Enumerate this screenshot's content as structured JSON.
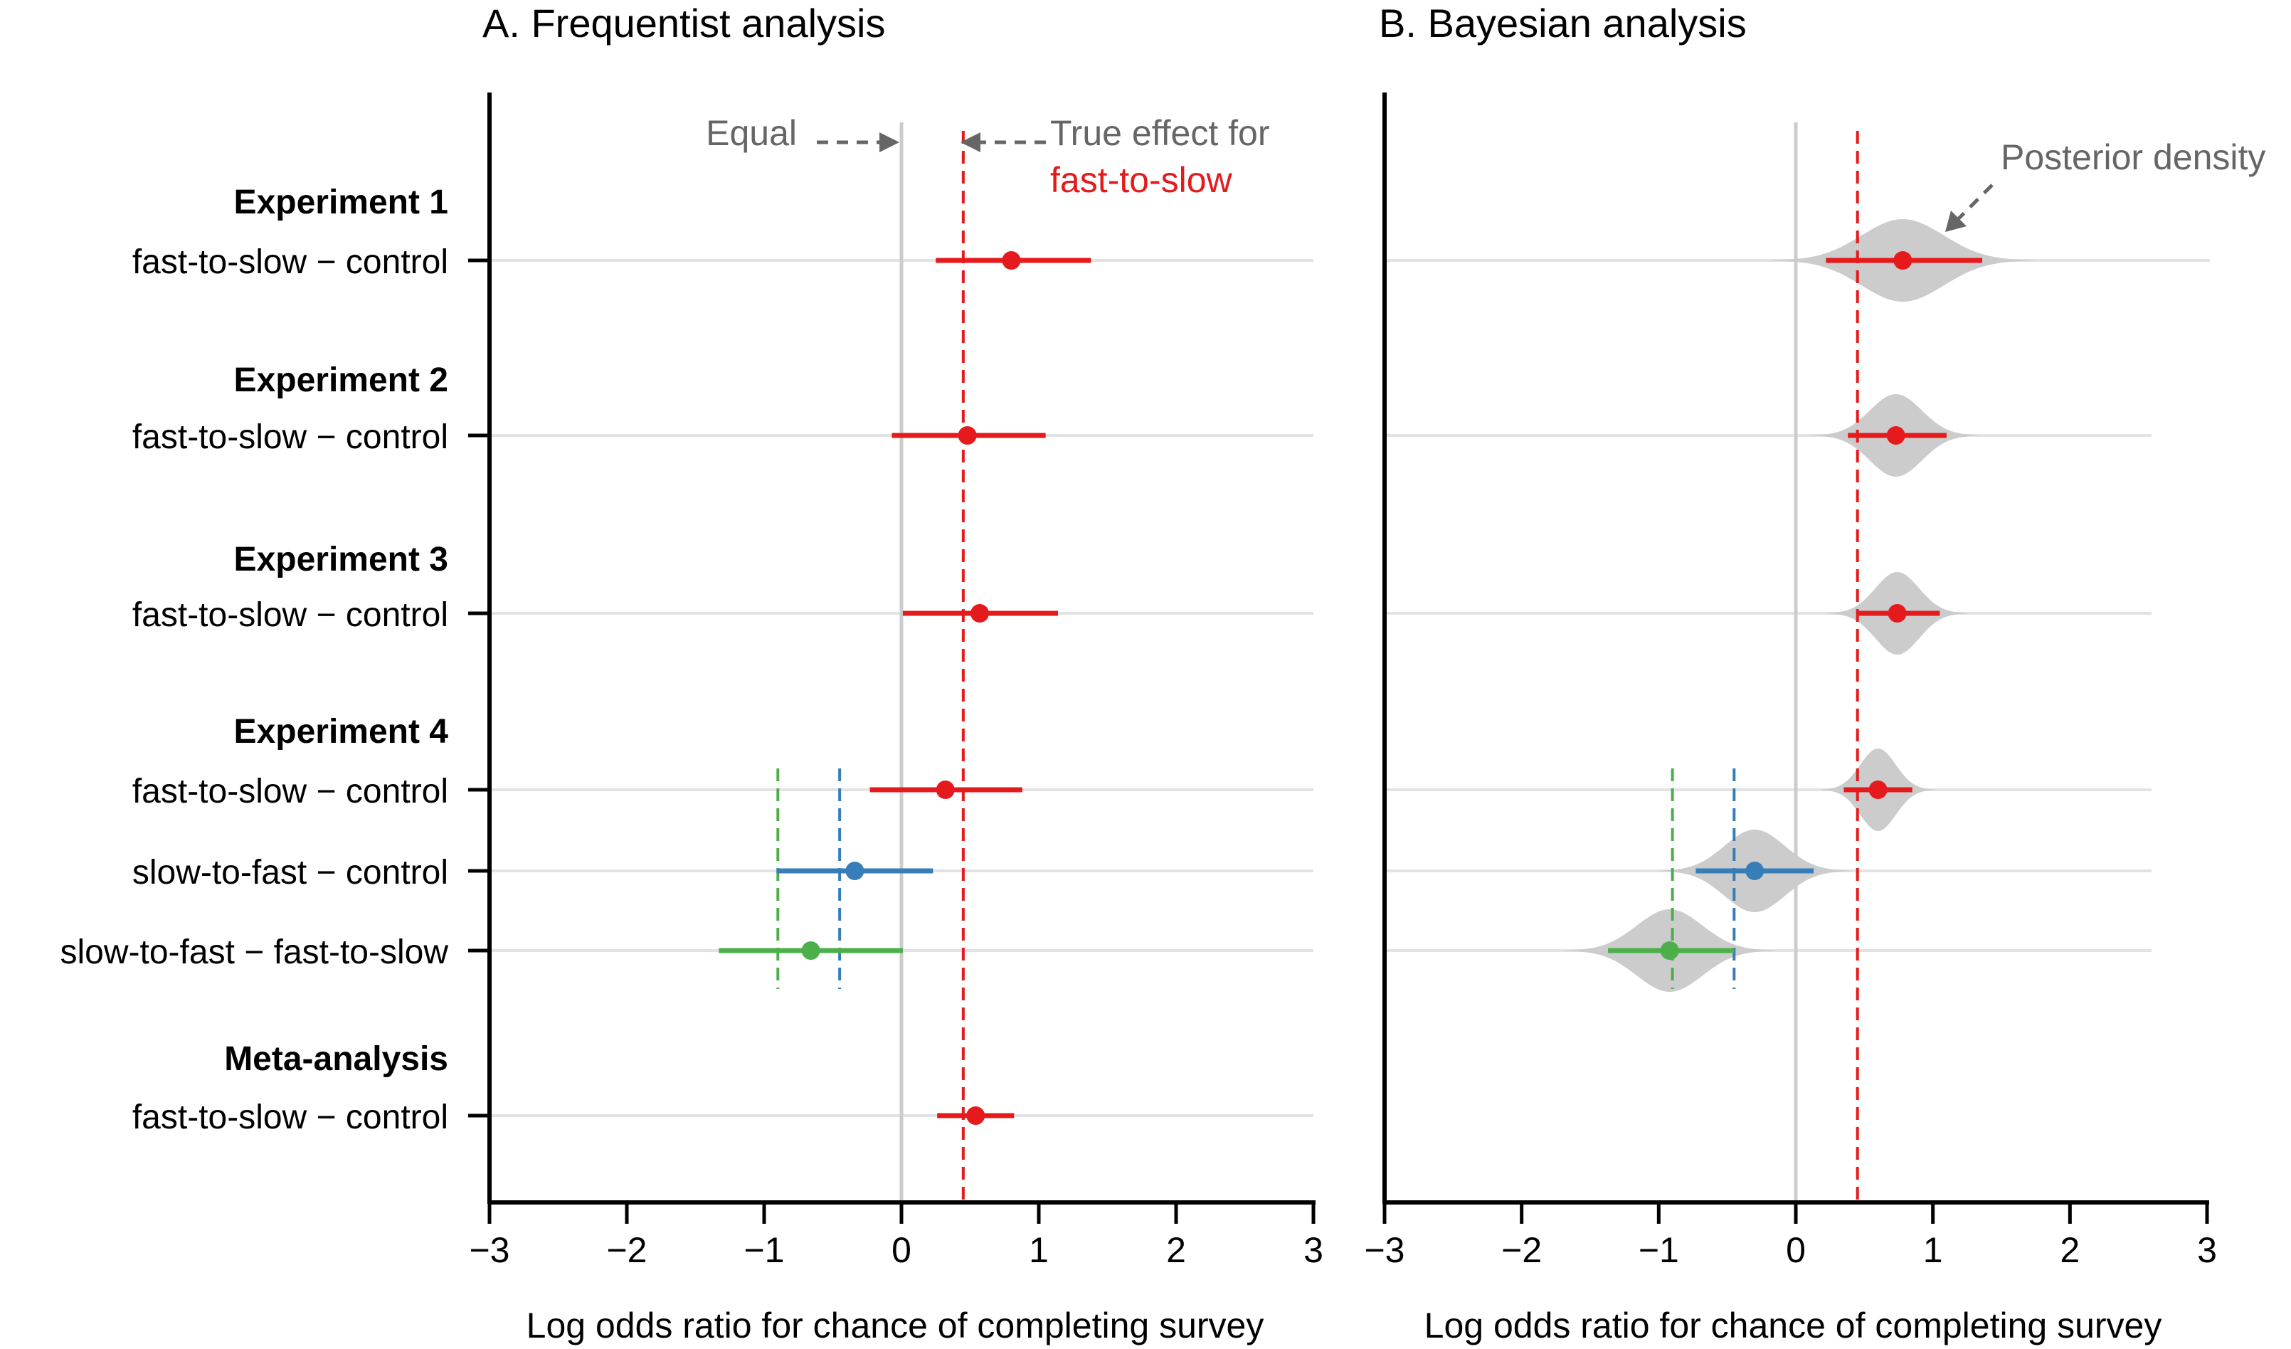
{
  "chart_data": [
    {
      "type": "forest",
      "title": "A. Frequentist analysis",
      "xlabel": "Log odds ratio for chance of completing survey",
      "xlim": [
        -3,
        3
      ],
      "xticks": [
        -3,
        -2,
        -1,
        0,
        1,
        2,
        3
      ],
      "xtick_labels": [
        "−3",
        "−2",
        "−1",
        "0",
        "1",
        "2",
        "3"
      ],
      "reference_lines": [
        {
          "x": 0,
          "label": "Equal",
          "color": "#cccccc",
          "style": "solid"
        },
        {
          "x": 0.45,
          "label": "True effect for",
          "label_accent": "fast-to-slow",
          "color": "#e41a1c",
          "style": "dashed"
        }
      ],
      "groups": [
        {
          "label": "Experiment 1",
          "rows": [
            {
              "label": "fast-to-slow − control",
              "series": "fast-to-slow",
              "estimate": 0.8,
              "lower": 0.25,
              "upper": 1.38
            }
          ]
        },
        {
          "label": "Experiment 2",
          "rows": [
            {
              "label": "fast-to-slow − control",
              "series": "fast-to-slow",
              "estimate": 0.48,
              "lower": -0.07,
              "upper": 1.05
            }
          ]
        },
        {
          "label": "Experiment 3",
          "rows": [
            {
              "label": "fast-to-slow − control",
              "series": "fast-to-slow",
              "estimate": 0.57,
              "lower": 0.01,
              "upper": 1.14
            }
          ]
        },
        {
          "label": "Experiment 4",
          "rows": [
            {
              "label": "fast-to-slow − control",
              "series": "fast-to-slow",
              "estimate": 0.32,
              "lower": -0.23,
              "upper": 0.88
            },
            {
              "label": "slow-to-fast − control",
              "series": "slow-to-fast",
              "estimate": -0.34,
              "lower": -0.91,
              "upper": 0.23,
              "true_effect": -0.45
            },
            {
              "label": "slow-to-fast − fast-to-slow",
              "series": "difference",
              "estimate": -0.66,
              "lower": -1.33,
              "upper": 0.01,
              "true_effect": -0.9
            }
          ]
        },
        {
          "label": "Meta-analysis",
          "rows": [
            {
              "label": "fast-to-slow − control",
              "series": "fast-to-slow",
              "estimate": 0.54,
              "lower": 0.26,
              "upper": 0.82
            }
          ]
        }
      ]
    },
    {
      "type": "forest",
      "title": "B. Bayesian analysis",
      "xlabel": "Log odds ratio for chance of completing survey",
      "xlim": [
        -3,
        3
      ],
      "xticks": [
        -3,
        -2,
        -1,
        0,
        1,
        2,
        3
      ],
      "xtick_labels": [
        "−3",
        "−2",
        "−1",
        "0",
        "1",
        "2",
        "3"
      ],
      "annotation": "Posterior density",
      "reference_lines": [
        {
          "x": 0,
          "color": "#cccccc",
          "style": "solid"
        },
        {
          "x": 0.45,
          "color": "#e41a1c",
          "style": "dashed"
        }
      ],
      "rows": [
        {
          "group": "Experiment 1",
          "series": "fast-to-slow",
          "estimate": 0.78,
          "lower": 0.22,
          "upper": 1.36,
          "posterior_sd": 0.3
        },
        {
          "group": "Experiment 2",
          "series": "fast-to-slow",
          "estimate": 0.73,
          "lower": 0.38,
          "upper": 1.1,
          "posterior_sd": 0.19
        },
        {
          "group": "Experiment 3",
          "series": "fast-to-slow",
          "estimate": 0.74,
          "lower": 0.45,
          "upper": 1.05,
          "posterior_sd": 0.16
        },
        {
          "group": "Experiment 4",
          "series": "fast-to-slow",
          "estimate": 0.6,
          "lower": 0.35,
          "upper": 0.85,
          "posterior_sd": 0.13
        },
        {
          "group": "Experiment 4",
          "series": "slow-to-fast",
          "estimate": -0.3,
          "lower": -0.73,
          "upper": 0.13,
          "posterior_sd": 0.22,
          "true_effect": -0.45
        },
        {
          "group": "Experiment 4",
          "series": "difference",
          "estimate": -0.92,
          "lower": -1.37,
          "upper": -0.45,
          "posterior_sd": 0.24,
          "true_effect": -0.9
        }
      ]
    }
  ],
  "colors": {
    "fast-to-slow": "#e41a1c",
    "slow-to-fast": "#377eb8",
    "difference": "#4daf4a",
    "density": "#cccccc",
    "gridline": "#e3e3e3",
    "annotation": "#666666"
  }
}
